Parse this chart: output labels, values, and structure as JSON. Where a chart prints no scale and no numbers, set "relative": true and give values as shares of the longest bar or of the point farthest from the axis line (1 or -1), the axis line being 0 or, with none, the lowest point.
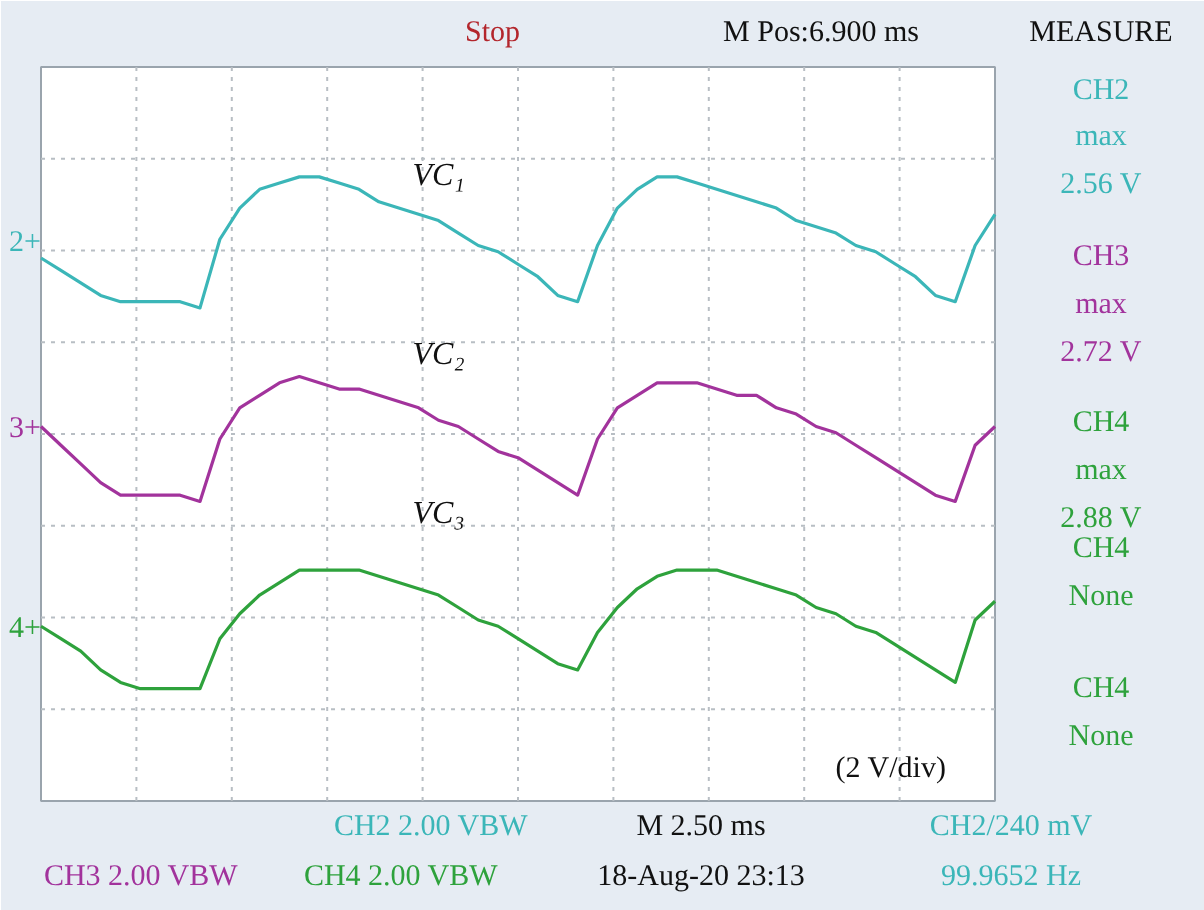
{
  "chart_data": {
    "type": "line",
    "relative": true,
    "grid": true,
    "marker": "none",
    "line_style": "solid",
    "categories": [
      null,
      null,
      null,
      null,
      null,
      null,
      null,
      null,
      null,
      null,
      null,
      null,
      null,
      null,
      null,
      null,
      null,
      null,
      null,
      null,
      null,
      null,
      null,
      null,
      null,
      null,
      null,
      null,
      null,
      null,
      null,
      null,
      null,
      null,
      null,
      null,
      null,
      null,
      null,
      null,
      null,
      null,
      null,
      null,
      null,
      null,
      null,
      null,
      null
    ],
    "series": [
      {
        "name": "VC₁",
        "color": "#3bb6b8",
        "values": [
          0.87,
          0.85,
          0.83,
          0.81,
          0.8,
          0.8,
          0.8,
          0.8,
          0.79,
          0.9,
          0.95,
          0.98,
          0.99,
          1.0,
          1.0,
          0.99,
          0.98,
          0.96,
          0.95,
          0.94,
          0.93,
          0.91,
          0.89,
          0.88,
          0.86,
          0.84,
          0.81,
          0.8,
          0.89,
          0.95,
          0.98,
          1.0,
          1.0,
          0.99,
          0.98,
          0.97,
          0.96,
          0.95,
          0.93,
          0.92,
          0.91,
          0.89,
          0.88,
          0.86,
          0.84,
          0.81,
          0.8,
          0.89,
          0.94
        ]
      },
      {
        "name": "VC₂",
        "color": "#a2339c",
        "values": [
          0.6,
          0.57,
          0.54,
          0.51,
          0.49,
          0.49,
          0.49,
          0.49,
          0.48,
          0.58,
          0.63,
          0.65,
          0.67,
          0.68,
          0.67,
          0.66,
          0.66,
          0.65,
          0.64,
          0.63,
          0.61,
          0.6,
          0.58,
          0.56,
          0.55,
          0.53,
          0.51,
          0.49,
          0.58,
          0.63,
          0.65,
          0.67,
          0.67,
          0.67,
          0.66,
          0.65,
          0.65,
          0.63,
          0.62,
          0.6,
          0.59,
          0.57,
          0.55,
          0.53,
          0.51,
          0.49,
          0.48,
          0.57,
          0.6
        ]
      },
      {
        "name": "VC₃",
        "color": "#2ea23c",
        "values": [
          0.28,
          0.26,
          0.24,
          0.21,
          0.19,
          0.18,
          0.18,
          0.18,
          0.18,
          0.26,
          0.3,
          0.33,
          0.35,
          0.37,
          0.37,
          0.37,
          0.37,
          0.36,
          0.35,
          0.34,
          0.33,
          0.31,
          0.29,
          0.28,
          0.26,
          0.24,
          0.22,
          0.21,
          0.27,
          0.31,
          0.34,
          0.36,
          0.37,
          0.37,
          0.37,
          0.36,
          0.35,
          0.34,
          0.33,
          0.31,
          0.3,
          0.28,
          0.27,
          0.25,
          0.23,
          0.21,
          0.19,
          0.29,
          0.32
        ]
      }
    ],
    "annotations": [
      "Stop",
      "M Pos:6.900 ms",
      "MEASURE",
      "CH2",
      "max",
      "2.56 V",
      "CH3",
      "max",
      "2.72 V",
      "CH4",
      "max",
      "2.88 V",
      "CH4",
      "None",
      "CH4",
      "None",
      "(2 V/div)",
      "CH2 2.00 VBW",
      "M 2.50 ms",
      "CH2/240 mV",
      "CH3 2.00 VBW",
      "CH4 2.00 VBW",
      "18-Aug-20 23:13",
      "99.9652 Hz",
      "2+",
      "3+",
      "4+"
    ]
  }
}
